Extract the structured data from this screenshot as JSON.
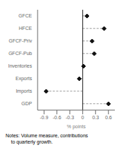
{
  "chart_data": {
    "type": "dot",
    "orientation": "horizontal",
    "categories": [
      "GFCE",
      "HFCE",
      "GFCF-Priv",
      "GFCF-Pub",
      "Inventories",
      "Exports",
      "Imports",
      "GDP"
    ],
    "values": [
      0.1,
      0.5,
      0.22,
      0.27,
      0.02,
      -0.08,
      -0.85,
      0.6
    ],
    "xlim": [
      -1.05,
      0.75
    ],
    "xticks": [
      -0.9,
      -0.6,
      -0.3,
      0,
      0.3,
      0.6
    ],
    "xlabel": "% points",
    "annotations": [
      "Notes: Volume measure, contributions",
      "    to quarterly growth."
    ],
    "color": "#111111",
    "marker": "diamond",
    "line_style": "dashed",
    "grid": false
  }
}
